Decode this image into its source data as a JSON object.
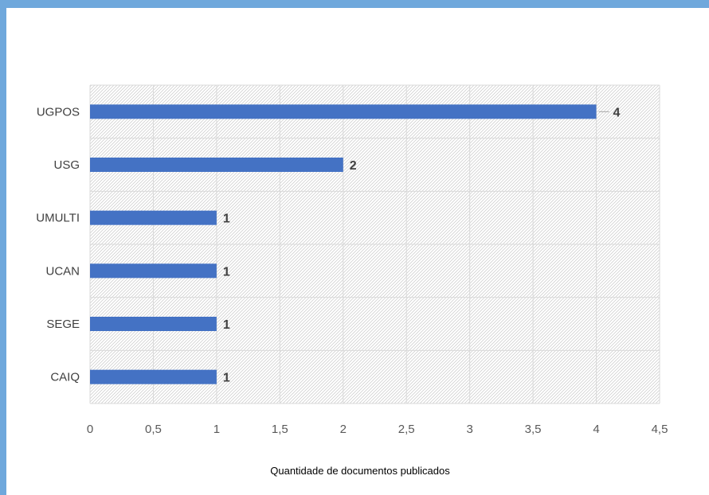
{
  "chart_data": {
    "type": "bar",
    "orientation": "horizontal",
    "categories": [
      "UGPOS",
      "USG",
      "UMULTI",
      "UCAN",
      "SEGE",
      "CAIQ"
    ],
    "values": [
      4,
      2,
      1,
      1,
      1,
      1
    ],
    "data_labels": [
      "4",
      "2",
      "1",
      "1",
      "1",
      "1"
    ],
    "xlabel": "Quantidade de documentos publicados",
    "ylabel": "",
    "xlim": [
      0,
      4.5
    ],
    "x_ticks": [
      "0",
      "0,5",
      "1",
      "1,5",
      "2",
      "2,5",
      "3",
      "3,5",
      "4",
      "4,5"
    ],
    "grid": true,
    "legend": "none",
    "bar_color": "#4472c4"
  }
}
